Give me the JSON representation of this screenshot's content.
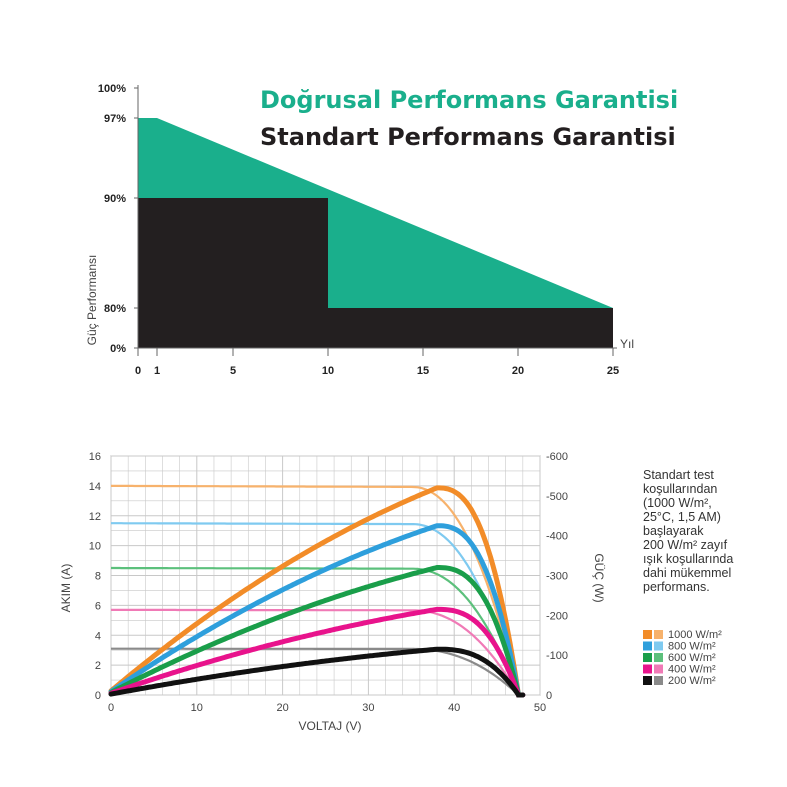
{
  "colors": {
    "teal": "#1aaf8c",
    "black": "#231f20",
    "grid": "#c8c8c8",
    "axis": "#555555"
  },
  "chart_data": [
    {
      "type": "area",
      "title": "Doğrusal Performans Garantisi",
      "subtitle": "Standart Performans Garantisi",
      "xlabel": "Yıl",
      "ylabel": "Güç Performansı",
      "x_ticks": [
        "0",
        "1",
        "5",
        "10",
        "15",
        "20",
        "25"
      ],
      "y_ticks": [
        "0%",
        "80%",
        "90%",
        "97%",
        "100%"
      ],
      "series": [
        {
          "name": "Doğrusal Performans Garantisi",
          "color": "#1aaf8c",
          "points": [
            [
              0,
              97
            ],
            [
              1,
              97
            ],
            [
              25,
              80
            ],
            [
              25,
              0
            ],
            [
              0,
              0
            ]
          ]
        },
        {
          "name": "Standart Performans Garantisi",
          "color": "#231f20",
          "points": [
            [
              0,
              90
            ],
            [
              10,
              90
            ],
            [
              10,
              80
            ],
            [
              25,
              80
            ],
            [
              25,
              0
            ],
            [
              0,
              0
            ]
          ]
        }
      ]
    },
    {
      "type": "line",
      "xlabel": "VOLTAJ (V)",
      "ylabel": "AKIM (A)",
      "y2label": "GÜÇ (W)",
      "xlim": [
        0,
        50
      ],
      "ylim": [
        0,
        16
      ],
      "y2lim": [
        0,
        600
      ],
      "x_ticks": [
        "0",
        "10",
        "20",
        "30",
        "40",
        "50"
      ],
      "y_ticks": [
        "0",
        "2",
        "4",
        "6",
        "8",
        "10",
        "12",
        "14",
        "16"
      ],
      "y2_ticks": [
        "0",
        "-100",
        "-200",
        "-300",
        "-400",
        "-500",
        "-600"
      ],
      "series": [
        {
          "name": "1000 W/m²",
          "color": "#f28c28",
          "light": "#f7b26c",
          "isc": 14.0,
          "vmp": 38.0,
          "pmax": 520,
          "voc": 47.5
        },
        {
          "name": "800 W/m²",
          "color": "#2e9fdc",
          "light": "#7fcaf0",
          "isc": 11.5,
          "vmp": 38.0,
          "pmax": 425,
          "voc": 47.5
        },
        {
          "name": "600 W/m²",
          "color": "#1a9e4a",
          "light": "#5cc07c",
          "isc": 8.5,
          "vmp": 38.0,
          "pmax": 320,
          "voc": 47.5
        },
        {
          "name": "400 W/m²",
          "color": "#e8138c",
          "light": "#f07ab6",
          "isc": 5.7,
          "vmp": 38.0,
          "pmax": 215,
          "voc": 47.5
        },
        {
          "name": "200 W/m²",
          "color": "#111111",
          "light": "#8a8a8a",
          "isc": 3.1,
          "vmp": 38.0,
          "pmax": 115,
          "voc": 47.5
        }
      ]
    }
  ],
  "note": {
    "lines": [
      "Standart test",
      "koşullarından",
      "(1000 W/m²,",
      "25°C, 1,5 AM)",
      "başlayarak",
      "200 W/m² zayıf",
      "ışık koşullarında",
      "dahi mükemmel",
      "performans."
    ]
  }
}
